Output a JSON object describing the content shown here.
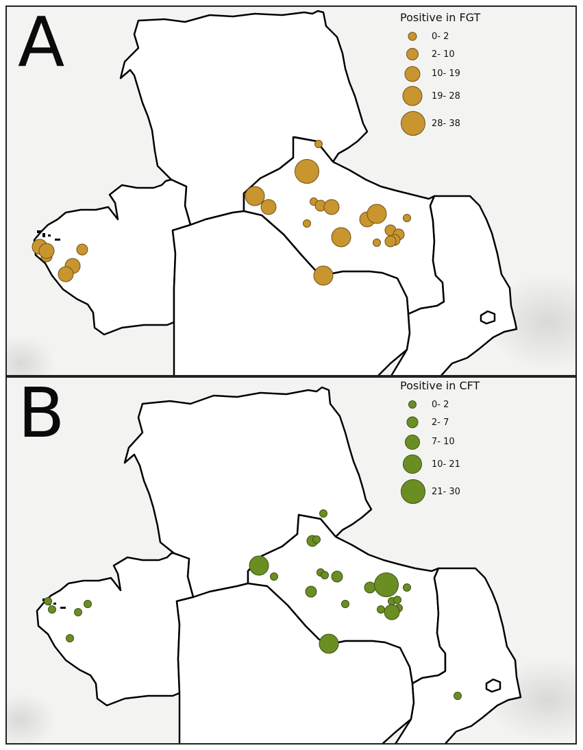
{
  "panels": [
    {
      "letter": "A",
      "legend_title": "Positive in FGT",
      "color": "#c8952e",
      "stroke": "#6e5019",
      "legend": [
        {
          "label": "0- 2",
          "size": 1
        },
        {
          "label": "2- 10",
          "size": 2
        },
        {
          "label": "10- 19",
          "size": 3
        },
        {
          "label": "19- 28",
          "size": 4
        },
        {
          "label": "28- 38",
          "size": 5
        }
      ],
      "sites": [
        {
          "cls": 1
        },
        {
          "cls": 5
        },
        {
          "cls": 4
        },
        {
          "cls": 3
        },
        {
          "cls": 1
        },
        {
          "cls": 2
        },
        {
          "cls": 2
        },
        {
          "cls": 3
        },
        {
          "cls": 1
        },
        {
          "cls": 3
        },
        {
          "cls": 4
        },
        {
          "cls": 1
        },
        {
          "cls": 4
        },
        {
          "cls": 2
        },
        {
          "cls": 2
        },
        {
          "cls": 2
        },
        {
          "cls": 1
        },
        {
          "cls": 2
        },
        {
          "cls": 4
        },
        {
          "cls": 3
        },
        {
          "cls": 2
        },
        {
          "cls": 2
        },
        {
          "cls": 3
        },
        {
          "cls": 3
        },
        {
          "cls": 3
        }
      ]
    },
    {
      "letter": "B",
      "legend_title": "Positive in CFT",
      "color": "#6b8e23",
      "stroke": "#3a5214",
      "legend": [
        {
          "label": "0- 2",
          "size": 1
        },
        {
          "label": "2- 7",
          "size": 2
        },
        {
          "label": "7- 10",
          "size": 3
        },
        {
          "label": "10- 21",
          "size": 4
        },
        {
          "label": "21- 30",
          "size": 5
        }
      ],
      "sites": [
        {
          "cls": 1
        },
        {
          "cls": 2
        },
        {
          "cls": 1
        },
        {
          "cls": 4
        },
        {
          "cls": 1
        },
        {
          "cls": 1
        },
        {
          "cls": 1
        },
        {
          "cls": 2
        },
        {
          "cls": 2
        },
        {
          "cls": 3
        },
        {
          "cls": 2
        },
        {
          "cls": 5
        },
        {
          "cls": 1
        },
        {
          "cls": 1
        },
        {
          "cls": 1
        },
        {
          "cls": 1
        },
        {
          "cls": 1
        },
        {
          "cls": 3
        },
        {
          "cls": 4
        },
        {
          "cls": 1
        },
        {
          "cls": 1
        },
        {
          "cls": 1
        },
        {
          "cls": 1
        },
        {
          "cls": 1
        },
        {
          "cls": 1
        },
        {
          "cls": 1
        }
      ]
    }
  ]
}
